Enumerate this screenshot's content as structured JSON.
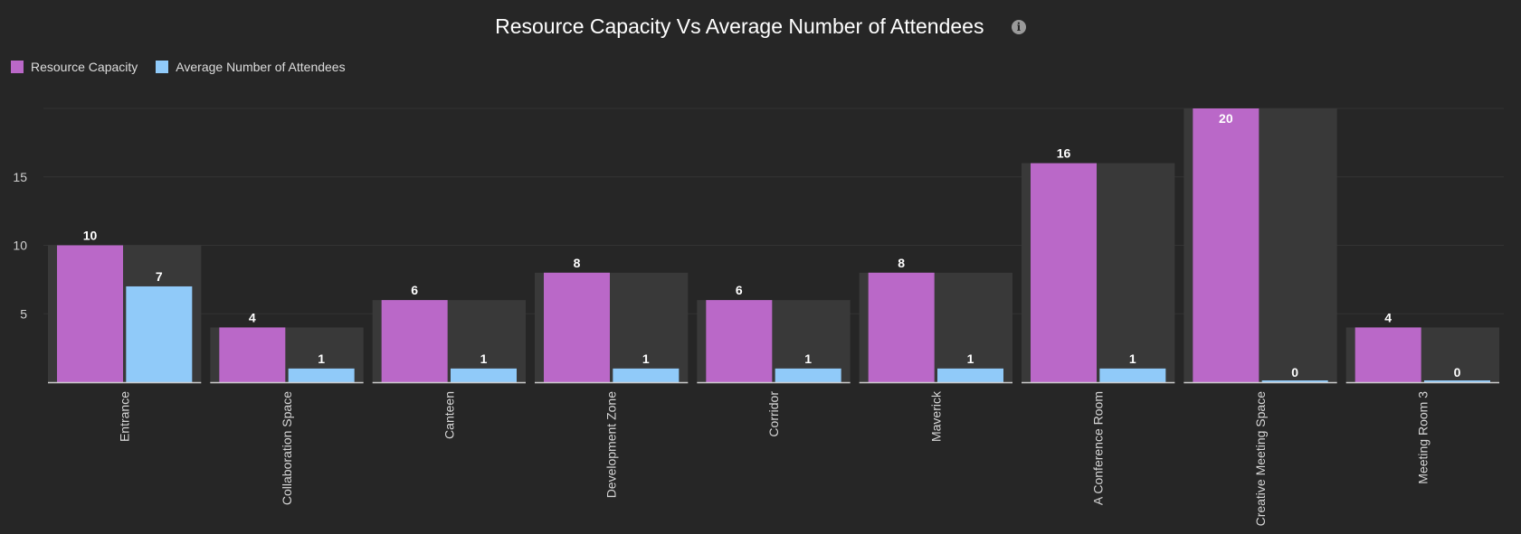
{
  "chart_data": {
    "type": "bar",
    "title": "Resource Capacity Vs Average Number of Attendees",
    "xlabel": "",
    "ylabel": "",
    "categories": [
      "Entrance",
      "Collaboration Space",
      "Canteen",
      "Development Zone",
      "Corridor",
      "Maverick",
      "A Conference Room",
      "Creative Meeting Space",
      "Meeting Room 3"
    ],
    "series": [
      {
        "name": "Resource Capacity",
        "color": "#ba68c8",
        "values": [
          10,
          4,
          6,
          8,
          6,
          8,
          16,
          20,
          4
        ]
      },
      {
        "name": "Average Number of Attendees",
        "color": "#90caf9",
        "values": [
          7,
          1,
          1,
          1,
          1,
          1,
          1,
          0,
          0
        ]
      }
    ],
    "ylim": [
      0,
      20
    ],
    "yticks": [
      5,
      10,
      15
    ],
    "grid": true,
    "legend_position": "top-left",
    "info_icon": "info-icon",
    "colors": {
      "background": "#262626",
      "category_band": "#393939",
      "grid": "#333333",
      "axis": "#cccccc"
    }
  }
}
